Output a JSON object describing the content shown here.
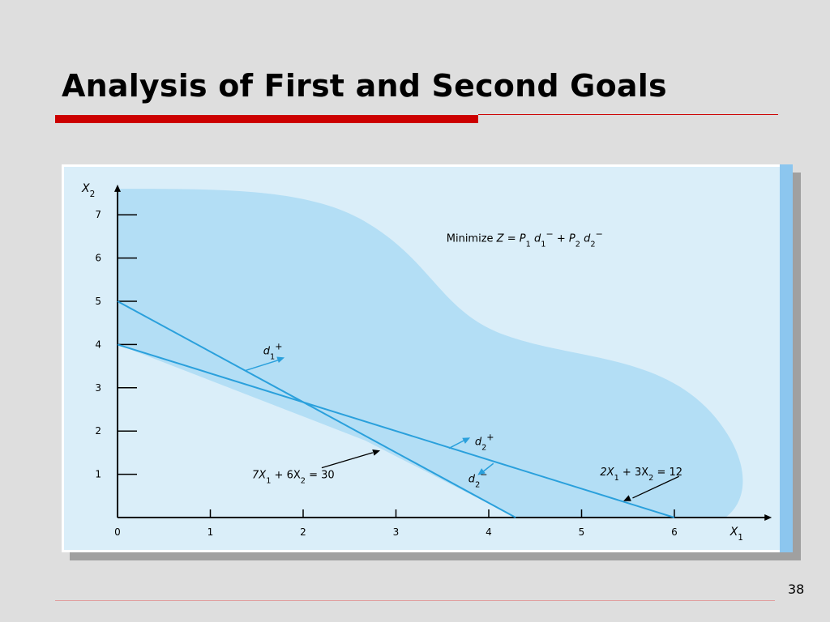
{
  "slide": {
    "title": "Analysis of First and Second Goals",
    "page_number": "38"
  },
  "colors": {
    "title_bar": "#cc0000",
    "panel_background": "#daeef9",
    "feasible_region": "#b3def5",
    "constraint_line": "#2aa0dc",
    "axis": "#000000",
    "annotation_arrow": "#000000"
  },
  "chart_data": {
    "type": "line",
    "title": "",
    "objective": {
      "prefix": "Minimize",
      "Z": "Z",
      "equals": "=",
      "P1": "P",
      "P1_sub": "1",
      "d1": "d",
      "d1_sub": "1",
      "d1_sup": "−",
      "plus": "+",
      "P2": "P",
      "P2_sub": "2",
      "d2": "d",
      "d2_sub": "2",
      "d2_sup": "−"
    },
    "x_axis": {
      "label": "X",
      "label_sub": "1",
      "ticks": [
        0,
        1,
        2,
        3,
        4,
        5,
        6
      ],
      "range": [
        0,
        7
      ]
    },
    "y_axis": {
      "label": "X",
      "label_sub": "2",
      "ticks": [
        1,
        2,
        3,
        4,
        5,
        6,
        7
      ],
      "range": [
        0,
        7.6
      ]
    },
    "series": [
      {
        "equation_parts": [
          "7X",
          "1",
          " + 6X",
          "2",
          " = 30"
        ],
        "points": [
          [
            0,
            5
          ],
          [
            4.29,
            0
          ]
        ]
      },
      {
        "equation_parts": [
          "2X",
          "1",
          " + 3X",
          "2",
          " = 12"
        ],
        "points": [
          [
            0,
            4
          ],
          [
            6,
            0
          ]
        ]
      }
    ],
    "deviation_labels": [
      {
        "base": "d",
        "sub": "1",
        "sup": "+"
      },
      {
        "base": "d",
        "sub": "2",
        "sup": "+"
      },
      {
        "base": "d",
        "sub": "2",
        "sup": "−"
      }
    ],
    "grid": false,
    "shaded_region": true
  }
}
